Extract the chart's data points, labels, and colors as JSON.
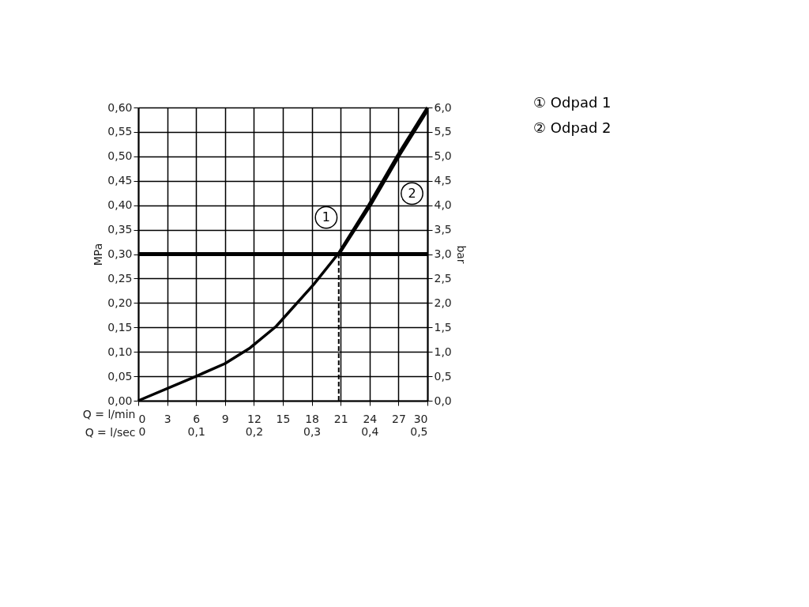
{
  "chart_data": {
    "type": "line",
    "xlabel": "Q = l/min",
    "x2label": "Q = l/sec",
    "ylabel": "MPa",
    "y2label": "bar",
    "series": [
      {
        "name": "① Odpad 1",
        "color": "#000000",
        "x": [
          0,
          6,
          9,
          11.6,
          14.3,
          18.2,
          20.8,
          23.9,
          26.9,
          30
        ],
        "values": [
          0,
          0.05,
          0.076,
          0.108,
          0.152,
          0.238,
          0.302,
          0.4,
          0.502,
          0.6
        ]
      },
      {
        "name": "② Odpad 2",
        "color": "#000000",
        "x": [
          20.9,
          24.1,
          27.1,
          30
        ],
        "values": [
          0.302,
          0.4,
          0.502,
          0.594
        ]
      }
    ],
    "xlim": [
      0,
      30
    ],
    "xticks": [
      0,
      3,
      6,
      9,
      12,
      15,
      18,
      21,
      24,
      27,
      30
    ],
    "x2lim": [
      0,
      0.5
    ],
    "x2ticks": [
      0,
      {
        "value": 0.1,
        "label": "0,1"
      },
      {
        "value": 0.2,
        "label": "0,2"
      },
      {
        "value": 0.3,
        "label": "0,3"
      },
      {
        "value": 0.4,
        "label": "0,4"
      },
      {
        "value": 0.5,
        "label": "0,5"
      }
    ],
    "ylim": [
      0,
      0.6
    ],
    "yticks": [
      {
        "value": 0,
        "label": "0,00"
      },
      {
        "value": 0.05,
        "label": "0,05"
      },
      {
        "value": 0.1,
        "label": "0,10"
      },
      {
        "value": 0.15,
        "label": "0,15"
      },
      {
        "value": 0.2,
        "label": "0,20"
      },
      {
        "value": 0.25,
        "label": "0,25"
      },
      {
        "value": 0.3,
        "label": "0,30"
      },
      {
        "value": 0.35,
        "label": "0,35"
      },
      {
        "value": 0.4,
        "label": "0,40"
      },
      {
        "value": 0.45,
        "label": "0,45"
      },
      {
        "value": 0.5,
        "label": "0,50"
      },
      {
        "value": 0.55,
        "label": "0,55"
      },
      {
        "value": 0.6,
        "label": "0,60"
      }
    ],
    "y2lim": [
      0,
      6
    ],
    "y2ticks": [
      {
        "value": 0,
        "label": "0,0"
      },
      {
        "value": 0.5,
        "label": "0,5"
      },
      {
        "value": 1,
        "label": "1,0"
      },
      {
        "value": 1.5,
        "label": "1,5"
      },
      {
        "value": 2,
        "label": "2,0"
      },
      {
        "value": 2.5,
        "label": "2,5"
      },
      {
        "value": 3,
        "label": "3,0"
      },
      {
        "value": 3.5,
        "label": "3,5"
      },
      {
        "value": 4,
        "label": "4,0"
      },
      {
        "value": 4.5,
        "label": "4,5"
      },
      {
        "value": 5,
        "label": "5,0"
      },
      {
        "value": 5.5,
        "label": "5,5"
      },
      {
        "value": 6,
        "label": "6,0"
      }
    ],
    "ref_lines": [
      {
        "axis": "y",
        "value": 0.3,
        "color": "#000000",
        "line_style": "solid"
      },
      {
        "axis": "x",
        "value": 20.8,
        "color": "#000000",
        "line_style": "dashed"
      }
    ],
    "annotations": [
      {
        "text": "1",
        "x": 19.5,
        "y": 0.375
      },
      {
        "text": "2",
        "x": 28.4,
        "y": 0.424
      }
    ],
    "grid": true,
    "legend": "top right",
    "marker": "none",
    "line_style": "solid"
  }
}
